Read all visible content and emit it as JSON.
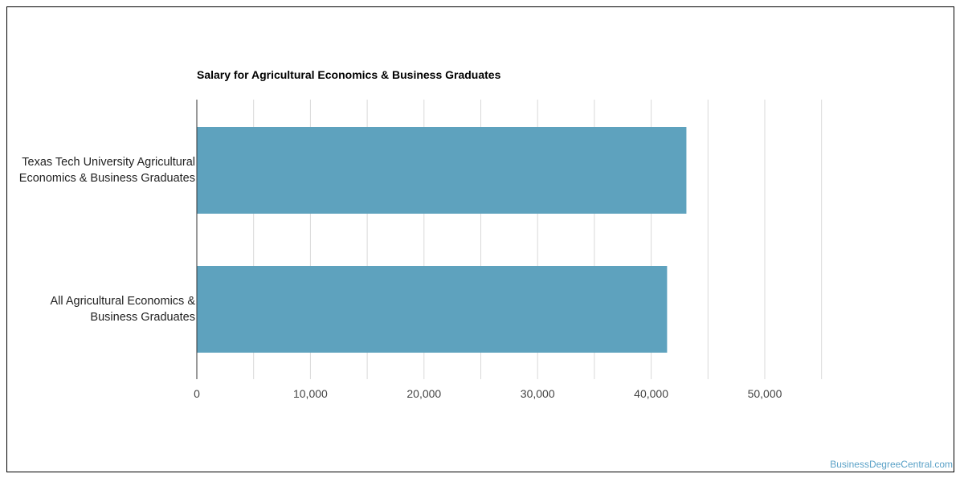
{
  "chart_data": {
    "type": "bar",
    "orientation": "horizontal",
    "title": "Salary for Agricultural Economics & Business Graduates",
    "categories": [
      "Texas Tech University Agricultural Economics & Business Graduates",
      "All Agricultural Economics & Business Graduates"
    ],
    "category_lines": [
      [
        "Texas Tech University Agricultural",
        "Economics & Business Graduates"
      ],
      [
        "All Agricultural Economics &",
        "Business Graduates"
      ]
    ],
    "values": [
      43100,
      41400
    ],
    "xlim": [
      0,
      55000
    ],
    "xticks": [
      0,
      10000,
      20000,
      30000,
      40000,
      50000
    ],
    "xtick_labels": [
      "0",
      "10,000",
      "20,000",
      "30,000",
      "40,000",
      "50,000"
    ],
    "grid": true,
    "bar_color": "#5ea2be",
    "grid_color": "#d9d9d9",
    "xlabel": "",
    "ylabel": ""
  },
  "watermark": "BusinessDegreeCentral.com"
}
